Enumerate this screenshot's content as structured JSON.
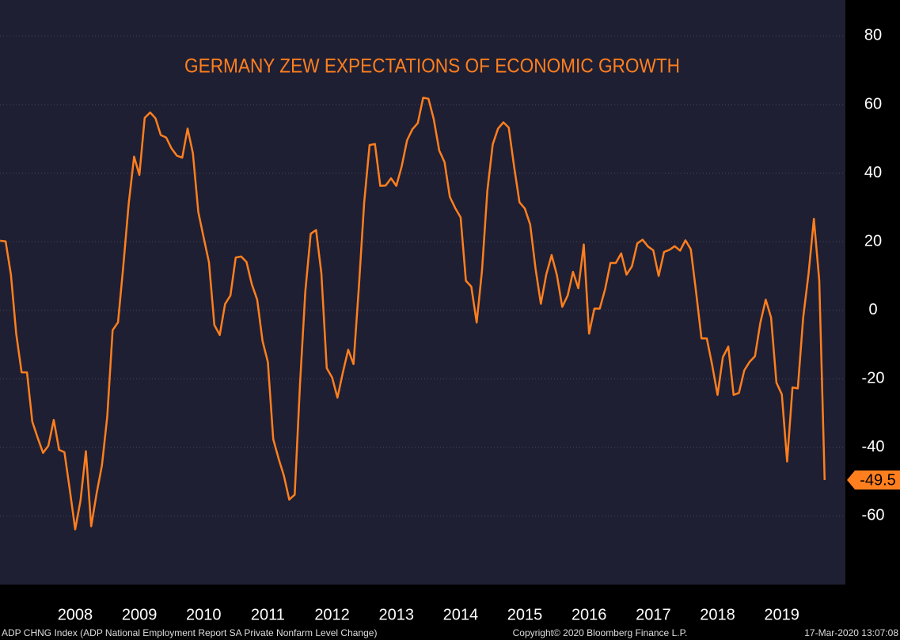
{
  "chart_data": {
    "type": "line",
    "title": "GERMANY ZEW EXPECTATIONS OF ECONOMIC GROWTH",
    "color": "#ff7f1e",
    "x": [
      2007.333,
      2007.417,
      2007.5,
      2007.583,
      2007.667,
      2007.75,
      2007.833,
      2007.917,
      2008.0,
      2008.083,
      2008.167,
      2008.25,
      2008.333,
      2008.417,
      2008.5,
      2008.583,
      2008.667,
      2008.75,
      2008.833,
      2008.917,
      2009.0,
      2009.083,
      2009.167,
      2009.25,
      2009.333,
      2009.417,
      2009.5,
      2009.583,
      2009.667,
      2009.75,
      2009.833,
      2009.917,
      2010.0,
      2010.083,
      2010.167,
      2010.25,
      2010.333,
      2010.417,
      2010.5,
      2010.583,
      2010.667,
      2010.75,
      2010.833,
      2010.917,
      2011.0,
      2011.083,
      2011.167,
      2011.25,
      2011.333,
      2011.417,
      2011.5,
      2011.583,
      2011.667,
      2011.75,
      2011.833,
      2011.917,
      2012.0,
      2012.083,
      2012.167,
      2012.25,
      2012.333,
      2012.417,
      2012.5,
      2012.583,
      2012.667,
      2012.75,
      2012.833,
      2012.917,
      2013.0,
      2013.083,
      2013.167,
      2013.25,
      2013.333,
      2013.417,
      2013.5,
      2013.583,
      2013.667,
      2013.75,
      2013.833,
      2013.917,
      2014.0,
      2014.083,
      2014.167,
      2014.25,
      2014.333,
      2014.417,
      2014.5,
      2014.583,
      2014.667,
      2014.75,
      2014.833,
      2014.917,
      2015.0,
      2015.083,
      2015.167,
      2015.25,
      2015.333,
      2015.417,
      2015.5,
      2015.583,
      2015.667,
      2015.75,
      2015.833,
      2015.917,
      2016.0,
      2016.083,
      2016.167,
      2016.25,
      2016.333,
      2016.417,
      2016.5,
      2016.583,
      2016.667,
      2016.75,
      2016.833,
      2016.917,
      2017.0,
      2017.083,
      2017.167,
      2017.25,
      2017.333,
      2017.417,
      2017.5,
      2017.583,
      2017.667,
      2017.75,
      2017.833,
      2017.917,
      2018.0,
      2018.083,
      2018.167,
      2018.25,
      2018.333,
      2018.417,
      2018.5,
      2018.583,
      2018.667,
      2018.75,
      2018.833,
      2018.917,
      2019.0,
      2019.083,
      2019.167,
      2019.25,
      2019.333,
      2019.417,
      2019.5,
      2019.583,
      2019.667,
      2019.75,
      2019.833,
      2019.917,
      2020.0,
      2020.083,
      2020.167
    ],
    "values": [
      20.3,
      20.1,
      10.4,
      -6.9,
      -18.1,
      -18.1,
      -32.5,
      -37.2,
      -41.6,
      -39.5,
      -32.0,
      -40.7,
      -41.4,
      -52.4,
      -63.9,
      -55.5,
      -41.1,
      -63.0,
      -53.5,
      -45.2,
      -31.0,
      -5.8,
      -3.5,
      13.0,
      31.1,
      44.8,
      39.5,
      56.1,
      57.7,
      56.0,
      51.1,
      50.4,
      47.2,
      45.1,
      44.5,
      53.0,
      45.8,
      28.7,
      21.2,
      14.0,
      -4.3,
      -7.2,
      1.8,
      4.3,
      15.4,
      15.7,
      14.1,
      7.6,
      3.1,
      -9.0,
      -15.1,
      -37.6,
      -43.3,
      -48.3,
      -55.2,
      -53.8,
      -21.6,
      5.4,
      22.3,
      23.4,
      10.8,
      -16.9,
      -19.6,
      -25.5,
      -18.2,
      -11.5,
      -15.7,
      6.9,
      31.5,
      48.2,
      48.5,
      36.3,
      36.4,
      38.5,
      36.3,
      42.0,
      49.6,
      52.8,
      54.6,
      62.0,
      61.7,
      55.7,
      46.6,
      43.2,
      33.1,
      29.8,
      27.1,
      8.6,
      6.9,
      -3.6,
      11.5,
      34.9,
      48.4,
      53.0,
      54.8,
      53.3,
      41.9,
      31.5,
      29.7,
      25.0,
      12.1,
      1.9,
      10.4,
      16.1,
      10.2,
      1.0,
      4.3,
      11.2,
      6.4,
      19.2,
      -6.8,
      0.5,
      0.5,
      6.2,
      13.8,
      13.8,
      16.6,
      10.4,
      12.8,
      19.5,
      20.6,
      18.6,
      17.5,
      10.0,
      17.0,
      17.6,
      18.7,
      17.4,
      20.4,
      17.8,
      5.1,
      -8.2,
      -8.2,
      -16.1,
      -24.7,
      -13.7,
      -10.6,
      -24.7,
      -24.1,
      -17.5,
      -15.0,
      -13.4,
      -3.6,
      3.1,
      -2.1,
      -21.1,
      -24.5,
      -44.1,
      -22.5,
      -22.8,
      -2.1,
      10.7,
      26.7,
      8.7,
      -49.5
    ],
    "last_value_label": "-49.5",
    "xlim": [
      2007.33,
      2020.49
    ],
    "xticks": [
      {
        "value": 2008.5,
        "label": "2008"
      },
      {
        "value": 2009.5,
        "label": "2009"
      },
      {
        "value": 2010.5,
        "label": "2010"
      },
      {
        "value": 2011.5,
        "label": "2011"
      },
      {
        "value": 2012.5,
        "label": "2012"
      },
      {
        "value": 2013.5,
        "label": "2013"
      },
      {
        "value": 2014.5,
        "label": "2014"
      },
      {
        "value": 2015.5,
        "label": "2015"
      },
      {
        "value": 2016.5,
        "label": "2016"
      },
      {
        "value": 2017.5,
        "label": "2017"
      },
      {
        "value": 2018.5,
        "label": "2018"
      },
      {
        "value": 2019.5,
        "label": "2019"
      }
    ],
    "ylim": [
      -80,
      90.5
    ],
    "yticks": [
      80,
      60,
      40,
      20,
      0,
      -20,
      -40,
      -60
    ],
    "grid": true,
    "footer": {
      "left": "ADP CHNG Index (ADP National Employment Report SA Private Nonfarm Level Change)",
      "center": "Copyright© 2020 Bloomberg Finance L.P.",
      "right": "17-Mar-2020 13:07:08"
    }
  }
}
